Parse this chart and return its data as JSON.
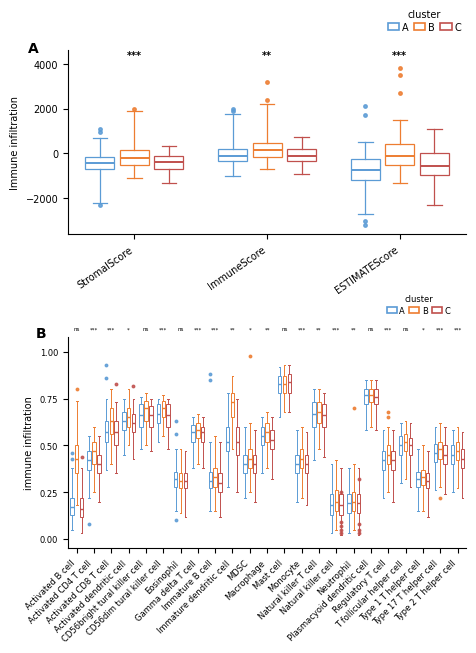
{
  "panel_A": {
    "categories": [
      "StromalScore",
      "ImmuneScore",
      "ESTIMATEScore"
    ],
    "clusters": [
      "A",
      "B",
      "C"
    ],
    "significance": [
      "***",
      "**",
      "***"
    ],
    "boxdata": {
      "StromalScore": {
        "A": {
          "q1": -700,
          "median": -450,
          "q3": -150,
          "whislo": -2200,
          "whishi": 700,
          "fliers_low": [
            -2300
          ],
          "fliers_high": [
            950,
            1100
          ]
        },
        "B": {
          "q1": -500,
          "median": -200,
          "q3": 150,
          "whislo": -1100,
          "whishi": 1900,
          "fliers_low": [],
          "fliers_high": [
            2000
          ]
        },
        "C": {
          "q1": -700,
          "median": -400,
          "q3": -100,
          "whislo": -1300,
          "whishi": 350,
          "fliers_low": [],
          "fliers_high": []
        }
      },
      "ImmuneScore": {
        "A": {
          "q1": -350,
          "median": -100,
          "q3": 200,
          "whislo": -1000,
          "whishi": 1750,
          "fliers_low": [],
          "fliers_high": [
            1900,
            2000
          ]
        },
        "B": {
          "q1": -150,
          "median": 150,
          "q3": 450,
          "whislo": -700,
          "whishi": 2200,
          "fliers_low": [],
          "fliers_high": [
            2400,
            3200
          ]
        },
        "C": {
          "q1": -350,
          "median": -100,
          "q3": 200,
          "whislo": -900,
          "whishi": 750,
          "fliers_low": [],
          "fliers_high": []
        }
      },
      "ESTIMATEScore": {
        "A": {
          "q1": -1200,
          "median": -750,
          "q3": -250,
          "whislo": -2700,
          "whishi": 500,
          "fliers_low": [
            -3000,
            -3200
          ],
          "fliers_high": [
            1700,
            2100
          ]
        },
        "B": {
          "q1": -500,
          "median": -100,
          "q3": 400,
          "whislo": -1300,
          "whishi": 1500,
          "fliers_low": [],
          "fliers_high": [
            2700,
            3500,
            3800
          ]
        },
        "C": {
          "q1": -950,
          "median": -550,
          "q3": 0,
          "whislo": -2300,
          "whishi": 1100,
          "fliers_low": [],
          "fliers_high": []
        }
      }
    },
    "ylabel": "Immune infiltration",
    "ylim": [
      -3600,
      4600
    ],
    "yticks": [
      -2000,
      0,
      2000,
      4000
    ]
  },
  "panel_B": {
    "categories": [
      "Activated B cell",
      "Activated CD4 T cell",
      "Activated CD8 T cell",
      "Activated dendritic cell",
      "CD56bright tural killer cell",
      "CD56dim tural killer cell",
      "Eosinophil",
      "Gamma delta T cell",
      "Immature B cell",
      "Immature dendritic cell",
      "MDSC",
      "Macrophage",
      "Mast cell",
      "Monocyte",
      "Natural killer T cell",
      "Natural killer cell",
      "Neutrophil",
      "Plasmacyoid dendritic cell",
      "Regulatory T cell",
      "T follicular helper cell",
      "Type 1 T helper cell",
      "Type 17 T helper cell",
      "Type 2 T helper cell"
    ],
    "clusters": [
      "A",
      "B",
      "C"
    ],
    "significance": [
      "ns",
      "***",
      "***",
      "*",
      "ns",
      "***",
      "ns",
      "***",
      "***",
      "**",
      "*",
      "**",
      "ns",
      "***",
      "**",
      "***",
      "**",
      "ns",
      "***",
      "ns",
      "*",
      "***",
      "***"
    ],
    "boxdata": {
      "Activated B cell": {
        "A": {
          "q1": 0.13,
          "median": 0.17,
          "q3": 0.22,
          "whislo": 0.05,
          "whishi": 0.38,
          "fliers_low": [],
          "fliers_high": [
            0.43,
            0.46
          ]
        },
        "B": {
          "q1": 0.35,
          "median": 0.43,
          "q3": 0.5,
          "whislo": 0.18,
          "whishi": 0.74,
          "fliers_low": [],
          "fliers_high": [
            0.8
          ]
        },
        "C": {
          "q1": 0.12,
          "median": 0.16,
          "q3": 0.22,
          "whislo": 0.03,
          "whishi": 0.38,
          "fliers_low": [],
          "fliers_high": [
            0.44
          ]
        }
      },
      "Activated CD4 T cell": {
        "A": {
          "q1": 0.37,
          "median": 0.42,
          "q3": 0.47,
          "whislo": 0.22,
          "whishi": 0.55,
          "fliers_low": [
            0.08
          ],
          "fliers_high": []
        },
        "B": {
          "q1": 0.4,
          "median": 0.47,
          "q3": 0.52,
          "whislo": 0.25,
          "whishi": 0.6,
          "fliers_low": [],
          "fliers_high": []
        },
        "C": {
          "q1": 0.35,
          "median": 0.4,
          "q3": 0.45,
          "whislo": 0.2,
          "whishi": 0.55,
          "fliers_low": [],
          "fliers_high": []
        }
      },
      "Activated CD8 T cell": {
        "A": {
          "q1": 0.52,
          "median": 0.57,
          "q3": 0.63,
          "whislo": 0.37,
          "whishi": 0.75,
          "fliers_low": [],
          "fliers_high": [
            0.86,
            0.93
          ]
        },
        "B": {
          "q1": 0.56,
          "median": 0.63,
          "q3": 0.7,
          "whislo": 0.4,
          "whishi": 0.8,
          "fliers_low": [],
          "fliers_high": []
        },
        "C": {
          "q1": 0.5,
          "median": 0.57,
          "q3": 0.63,
          "whislo": 0.35,
          "whishi": 0.73,
          "fliers_low": [],
          "fliers_high": [
            0.83
          ]
        }
      },
      "Activated dendritic cell": {
        "A": {
          "q1": 0.58,
          "median": 0.63,
          "q3": 0.68,
          "whislo": 0.45,
          "whishi": 0.75,
          "fliers_low": [],
          "fliers_high": []
        },
        "B": {
          "q1": 0.6,
          "median": 0.65,
          "q3": 0.7,
          "whislo": 0.5,
          "whishi": 0.8,
          "fliers_low": [],
          "fliers_high": []
        },
        "C": {
          "q1": 0.57,
          "median": 0.62,
          "q3": 0.67,
          "whislo": 0.43,
          "whishi": 0.75,
          "fliers_low": [],
          "fliers_high": [
            0.82
          ]
        }
      },
      "CD56bright tural killer cell": {
        "A": {
          "q1": 0.6,
          "median": 0.66,
          "q3": 0.72,
          "whislo": 0.48,
          "whishi": 0.76,
          "fliers_low": [],
          "fliers_high": []
        },
        "B": {
          "q1": 0.63,
          "median": 0.7,
          "q3": 0.74,
          "whislo": 0.5,
          "whishi": 0.78,
          "fliers_low": [],
          "fliers_high": []
        },
        "C": {
          "q1": 0.6,
          "median": 0.66,
          "q3": 0.71,
          "whislo": 0.47,
          "whishi": 0.75,
          "fliers_low": [],
          "fliers_high": []
        }
      },
      "CD56dim tural killer cell": {
        "A": {
          "q1": 0.62,
          "median": 0.67,
          "q3": 0.72,
          "whislo": 0.52,
          "whishi": 0.75,
          "fliers_low": [],
          "fliers_high": []
        },
        "B": {
          "q1": 0.65,
          "median": 0.7,
          "q3": 0.74,
          "whislo": 0.55,
          "whishi": 0.77,
          "fliers_low": [],
          "fliers_high": []
        },
        "C": {
          "q1": 0.6,
          "median": 0.66,
          "q3": 0.72,
          "whislo": 0.48,
          "whishi": 0.75,
          "fliers_low": [],
          "fliers_high": []
        }
      },
      "Eosinophil": {
        "A": {
          "q1": 0.28,
          "median": 0.32,
          "q3": 0.36,
          "whislo": 0.15,
          "whishi": 0.48,
          "fliers_low": [
            0.1
          ],
          "fliers_high": [
            0.56,
            0.63
          ]
        },
        "B": {
          "q1": 0.27,
          "median": 0.31,
          "q3": 0.35,
          "whislo": 0.14,
          "whishi": 0.48,
          "fliers_low": [],
          "fliers_high": []
        },
        "C": {
          "q1": 0.27,
          "median": 0.31,
          "q3": 0.35,
          "whislo": 0.12,
          "whishi": 0.47,
          "fliers_low": [],
          "fliers_high": []
        }
      },
      "Gamma delta T cell": {
        "A": {
          "q1": 0.52,
          "median": 0.57,
          "q3": 0.61,
          "whislo": 0.38,
          "whishi": 0.65,
          "fliers_low": [],
          "fliers_high": []
        },
        "B": {
          "q1": 0.54,
          "median": 0.58,
          "q3": 0.62,
          "whislo": 0.4,
          "whishi": 0.67,
          "fliers_low": [],
          "fliers_high": []
        },
        "C": {
          "q1": 0.52,
          "median": 0.57,
          "q3": 0.6,
          "whislo": 0.38,
          "whishi": 0.65,
          "fliers_low": [],
          "fliers_high": []
        }
      },
      "Immature B cell": {
        "A": {
          "q1": 0.27,
          "median": 0.31,
          "q3": 0.36,
          "whislo": 0.15,
          "whishi": 0.52,
          "fliers_low": [],
          "fliers_high": [
            0.85,
            0.88
          ]
        },
        "B": {
          "q1": 0.28,
          "median": 0.33,
          "q3": 0.38,
          "whislo": 0.15,
          "whishi": 0.55,
          "fliers_low": [],
          "fliers_high": []
        },
        "C": {
          "q1": 0.25,
          "median": 0.3,
          "q3": 0.35,
          "whislo": 0.12,
          "whishi": 0.52,
          "fliers_low": [],
          "fliers_high": []
        }
      },
      "Immature dendritic cell": {
        "A": {
          "q1": 0.47,
          "median": 0.52,
          "q3": 0.6,
          "whislo": 0.28,
          "whishi": 0.78,
          "fliers_low": [],
          "fliers_high": []
        },
        "B": {
          "q1": 0.65,
          "median": 0.73,
          "q3": 0.78,
          "whislo": 0.48,
          "whishi": 0.87,
          "fliers_low": [],
          "fliers_high": []
        },
        "C": {
          "q1": 0.45,
          "median": 0.52,
          "q3": 0.6,
          "whislo": 0.25,
          "whishi": 0.75,
          "fliers_low": [],
          "fliers_high": []
        }
      },
      "MDSC": {
        "A": {
          "q1": 0.35,
          "median": 0.4,
          "q3": 0.45,
          "whislo": 0.22,
          "whishi": 0.6,
          "fliers_low": [],
          "fliers_high": []
        },
        "B": {
          "q1": 0.38,
          "median": 0.43,
          "q3": 0.48,
          "whislo": 0.25,
          "whishi": 0.62,
          "fliers_low": [
            0.98
          ],
          "fliers_high": []
        },
        "C": {
          "q1": 0.35,
          "median": 0.4,
          "q3": 0.45,
          "whislo": 0.2,
          "whishi": 0.58,
          "fliers_low": [],
          "fliers_high": []
        }
      },
      "Macrophage": {
        "A": {
          "q1": 0.5,
          "median": 0.55,
          "q3": 0.6,
          "whislo": 0.35,
          "whishi": 0.65,
          "fliers_low": [],
          "fliers_high": []
        },
        "B": {
          "q1": 0.52,
          "median": 0.57,
          "q3": 0.62,
          "whislo": 0.38,
          "whishi": 0.68,
          "fliers_low": [],
          "fliers_high": []
        },
        "C": {
          "q1": 0.48,
          "median": 0.53,
          "q3": 0.58,
          "whislo": 0.32,
          "whishi": 0.65,
          "fliers_low": [],
          "fliers_high": []
        }
      },
      "Mast cell": {
        "A": {
          "q1": 0.78,
          "median": 0.83,
          "q3": 0.87,
          "whislo": 0.65,
          "whishi": 0.92,
          "fliers_low": [],
          "fliers_high": []
        },
        "B": {
          "q1": 0.78,
          "median": 0.83,
          "q3": 0.87,
          "whislo": 0.68,
          "whishi": 0.93,
          "fliers_low": [],
          "fliers_high": []
        },
        "C": {
          "q1": 0.78,
          "median": 0.84,
          "q3": 0.88,
          "whislo": 0.68,
          "whishi": 0.93,
          "fliers_low": [],
          "fliers_high": []
        }
      },
      "Monocyte": {
        "A": {
          "q1": 0.35,
          "median": 0.4,
          "q3": 0.45,
          "whislo": 0.2,
          "whishi": 0.58,
          "fliers_low": [],
          "fliers_high": []
        },
        "B": {
          "q1": 0.38,
          "median": 0.43,
          "q3": 0.48,
          "whislo": 0.22,
          "whishi": 0.6,
          "fliers_low": [],
          "fliers_high": []
        },
        "C": {
          "q1": 0.35,
          "median": 0.4,
          "q3": 0.45,
          "whislo": 0.18,
          "whishi": 0.57,
          "fliers_low": [],
          "fliers_high": []
        }
      },
      "Natural killer T cell": {
        "A": {
          "q1": 0.6,
          "median": 0.67,
          "q3": 0.73,
          "whislo": 0.42,
          "whishi": 0.8,
          "fliers_low": [],
          "fliers_high": []
        },
        "B": {
          "q1": 0.62,
          "median": 0.68,
          "q3": 0.73,
          "whislo": 0.48,
          "whishi": 0.8,
          "fliers_low": [],
          "fliers_high": []
        },
        "C": {
          "q1": 0.6,
          "median": 0.66,
          "q3": 0.72,
          "whislo": 0.44,
          "whishi": 0.78,
          "fliers_low": [],
          "fliers_high": []
        }
      },
      "Natural killer cell": {
        "A": {
          "q1": 0.13,
          "median": 0.18,
          "q3": 0.24,
          "whislo": 0.03,
          "whishi": 0.4,
          "fliers_low": [],
          "fliers_high": []
        },
        "B": {
          "q1": 0.15,
          "median": 0.2,
          "q3": 0.26,
          "whislo": 0.05,
          "whishi": 0.42,
          "fliers_low": [],
          "fliers_high": []
        },
        "C": {
          "q1": 0.13,
          "median": 0.18,
          "q3": 0.24,
          "whislo": 0.02,
          "whishi": 0.38,
          "fliers_low": [
            0.03,
            0.05,
            0.07,
            0.09
          ],
          "fliers_high": [
            0.25
          ]
        }
      },
      "Neutrophil": {
        "A": {
          "q1": 0.14,
          "median": 0.19,
          "q3": 0.24,
          "whislo": 0.03,
          "whishi": 0.38,
          "fliers_low": [],
          "fliers_high": []
        },
        "B": {
          "q1": 0.15,
          "median": 0.2,
          "q3": 0.25,
          "whislo": 0.05,
          "whishi": 0.4,
          "fliers_low": [],
          "fliers_high": [
            0.7
          ]
        },
        "C": {
          "q1": 0.14,
          "median": 0.19,
          "q3": 0.24,
          "whislo": 0.02,
          "whishi": 0.38,
          "fliers_low": [
            0.03,
            0.05,
            0.08
          ],
          "fliers_high": [
            0.32
          ]
        }
      },
      "Plasmacyoid dendritic cell": {
        "A": {
          "q1": 0.72,
          "median": 0.77,
          "q3": 0.8,
          "whislo": 0.58,
          "whishi": 0.85,
          "fliers_low": [],
          "fliers_high": []
        },
        "B": {
          "q1": 0.73,
          "median": 0.77,
          "q3": 0.8,
          "whislo": 0.6,
          "whishi": 0.85,
          "fliers_low": [],
          "fliers_high": []
        },
        "C": {
          "q1": 0.72,
          "median": 0.76,
          "q3": 0.8,
          "whislo": 0.58,
          "whishi": 0.85,
          "fliers_low": [],
          "fliers_high": []
        }
      },
      "Regulatory T cell": {
        "A": {
          "q1": 0.37,
          "median": 0.42,
          "q3": 0.47,
          "whislo": 0.22,
          "whishi": 0.58,
          "fliers_low": [],
          "fliers_high": []
        },
        "B": {
          "q1": 0.4,
          "median": 0.45,
          "q3": 0.5,
          "whislo": 0.25,
          "whishi": 0.6,
          "fliers_low": [],
          "fliers_high": [
            0.65,
            0.68
          ]
        },
        "C": {
          "q1": 0.37,
          "median": 0.42,
          "q3": 0.47,
          "whislo": 0.2,
          "whishi": 0.58,
          "fliers_low": [],
          "fliers_high": []
        }
      },
      "T follicular helper cell": {
        "A": {
          "q1": 0.45,
          "median": 0.5,
          "q3": 0.55,
          "whislo": 0.3,
          "whishi": 0.62,
          "fliers_low": [],
          "fliers_high": []
        },
        "B": {
          "q1": 0.47,
          "median": 0.52,
          "q3": 0.56,
          "whislo": 0.32,
          "whishi": 0.63,
          "fliers_low": [],
          "fliers_high": []
        },
        "C": {
          "q1": 0.45,
          "median": 0.5,
          "q3": 0.54,
          "whislo": 0.28,
          "whishi": 0.62,
          "fliers_low": [],
          "fliers_high": []
        }
      },
      "Type 1 T helper cell": {
        "A": {
          "q1": 0.28,
          "median": 0.32,
          "q3": 0.36,
          "whislo": 0.15,
          "whishi": 0.48,
          "fliers_low": [],
          "fliers_high": []
        },
        "B": {
          "q1": 0.29,
          "median": 0.33,
          "q3": 0.37,
          "whislo": 0.15,
          "whishi": 0.5,
          "fliers_low": [],
          "fliers_high": []
        },
        "C": {
          "q1": 0.27,
          "median": 0.31,
          "q3": 0.35,
          "whislo": 0.12,
          "whishi": 0.47,
          "fliers_low": [],
          "fliers_high": []
        }
      },
      "Type 17 T helper cell": {
        "A": {
          "q1": 0.41,
          "median": 0.46,
          "q3": 0.51,
          "whislo": 0.26,
          "whishi": 0.6,
          "fliers_low": [],
          "fliers_high": []
        },
        "B": {
          "q1": 0.43,
          "median": 0.48,
          "q3": 0.52,
          "whislo": 0.28,
          "whishi": 0.62,
          "fliers_low": [
            0.22
          ],
          "fliers_high": []
        },
        "C": {
          "q1": 0.4,
          "median": 0.45,
          "q3": 0.5,
          "whislo": 0.24,
          "whishi": 0.6,
          "fliers_low": [],
          "fliers_high": []
        }
      },
      "Type 2 T helper cell": {
        "A": {
          "q1": 0.4,
          "median": 0.45,
          "q3": 0.5,
          "whislo": 0.25,
          "whishi": 0.58,
          "fliers_low": [],
          "fliers_high": []
        },
        "B": {
          "q1": 0.42,
          "median": 0.47,
          "q3": 0.52,
          "whislo": 0.27,
          "whishi": 0.6,
          "fliers_low": [],
          "fliers_high": []
        },
        "C": {
          "q1": 0.38,
          "median": 0.43,
          "q3": 0.48,
          "whislo": 0.22,
          "whishi": 0.57,
          "fliers_low": [],
          "fliers_high": []
        }
      }
    },
    "ylabel": "immune infiltration",
    "ylim": [
      -0.05,
      1.08
    ],
    "yticks": [
      0.0,
      0.25,
      0.5,
      0.75,
      1.0
    ]
  },
  "colors": {
    "A": "#5B9BD5",
    "B": "#ED7D31",
    "C": "#C0504D"
  },
  "background_color": "#FFFFFF"
}
